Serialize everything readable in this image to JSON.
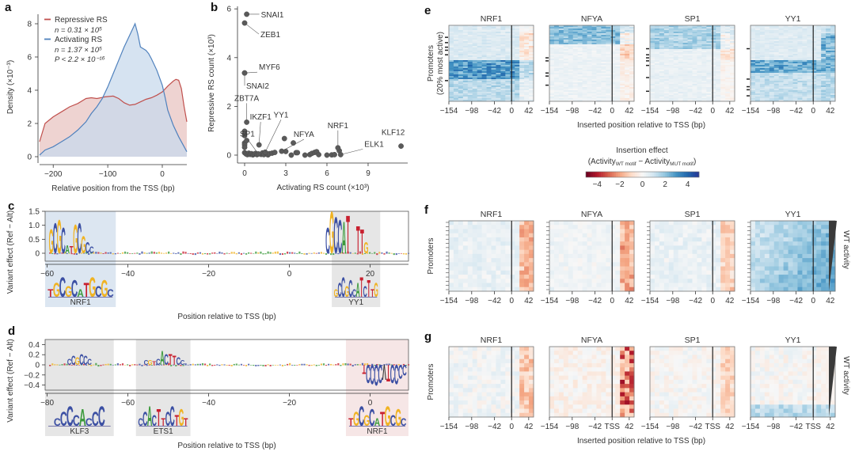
{
  "panel_labels": {
    "a": "a",
    "b": "b",
    "c": "c",
    "d": "d",
    "e": "e",
    "f": "f",
    "g": "g"
  },
  "chart_data": [
    {
      "id": "a",
      "type": "area",
      "xlabel": "Relative position from the TSS (bp)",
      "ylabel": "Density (×10⁻³)",
      "xlim": [
        -225,
        45
      ],
      "ylim": [
        0,
        8
      ],
      "xticks": [
        -200,
        -100,
        0
      ],
      "xtick_labels": [
        "−200",
        "−100",
        "0"
      ],
      "yticks": [
        0,
        2,
        4,
        6,
        8
      ],
      "ytick_labels": [
        "0",
        "2",
        "4",
        "6",
        "8"
      ],
      "legend_position": "top-left",
      "series": [
        {
          "name": "Repressive RS",
          "annotation": [
            "n = 0.31 × 10⁵"
          ],
          "color": "#c0504d",
          "fill": "#e8c4c2",
          "x": [
            -225,
            -215,
            -200,
            -185,
            -170,
            -155,
            -140,
            -130,
            -120,
            -105,
            -90,
            -80,
            -70,
            -60,
            -50,
            -40,
            -30,
            -20,
            -10,
            0,
            10,
            20,
            25,
            30,
            35,
            40,
            45
          ],
          "y": [
            0.9,
            2.0,
            2.4,
            2.7,
            3.0,
            3.2,
            3.5,
            3.55,
            3.5,
            3.6,
            3.65,
            3.5,
            3.25,
            3.1,
            3.15,
            3.3,
            3.45,
            3.55,
            3.7,
            3.9,
            4.25,
            4.55,
            4.65,
            4.6,
            4.1,
            3.0,
            2.1
          ]
        },
        {
          "name": "Activating RS",
          "annotation": [
            "n = 1.37 × 10⁵",
            "P < 2.2 × 10⁻¹⁶"
          ],
          "color": "#4f81bd",
          "fill": "#c8d9ec",
          "x": [
            -225,
            -215,
            -200,
            -185,
            -170,
            -155,
            -140,
            -130,
            -120,
            -110,
            -100,
            -90,
            -80,
            -70,
            -60,
            -50,
            -45,
            -40,
            -35,
            -30,
            -25,
            -20,
            -10,
            0,
            5,
            10,
            20,
            30,
            40,
            45
          ],
          "y": [
            0.1,
            0.4,
            0.6,
            0.9,
            1.2,
            1.6,
            2.1,
            2.6,
            3.0,
            3.5,
            4.2,
            5.0,
            5.8,
            6.6,
            7.3,
            8.0,
            7.4,
            6.6,
            6.5,
            6.4,
            6.2,
            5.9,
            5.2,
            4.3,
            3.6,
            2.8,
            1.9,
            1.2,
            0.6,
            0.3
          ]
        }
      ]
    },
    {
      "id": "b",
      "type": "scatter",
      "xlabel": "Activating RS count (×10³)",
      "ylabel": "Repressive RS count (×10³)",
      "xlim": [
        -0.4,
        11.5
      ],
      "ylim": [
        -0.2,
        6.1
      ],
      "xticks": [
        0,
        3,
        6,
        9
      ],
      "xtick_labels": [
        "0",
        "3",
        "6",
        "9"
      ],
      "yticks": [
        0,
        2,
        4,
        6
      ],
      "ytick_labels": [
        "0",
        "2",
        "4",
        "6"
      ],
      "point_color": "#5a5a5a",
      "labeled_points": [
        {
          "label": "SNAI1",
          "x": 0.15,
          "y": 5.78
        },
        {
          "label": "ZEB1",
          "x": 0.0,
          "y": 5.42
        },
        {
          "label": "MYF6",
          "x": 0.0,
          "y": 3.37
        },
        {
          "label": "SNAI2",
          "x": 0.0,
          "y": 3.37
        },
        {
          "label": "ZBT7A",
          "x": 0.15,
          "y": 1.35
        },
        {
          "label": "IKZF1",
          "x": 1.05,
          "y": 0.42
        },
        {
          "label": "YY1",
          "x": 1.5,
          "y": 0.12
        },
        {
          "label": "SP1",
          "x": 1.0,
          "y": 0.05
        },
        {
          "label": "NFYA",
          "x": 2.7,
          "y": 0.16
        },
        {
          "label": "NRF1",
          "x": 6.8,
          "y": 0.3
        },
        {
          "label": "ELK1",
          "x": 7.0,
          "y": 0.02
        },
        {
          "label": "KLF12",
          "x": 11.4,
          "y": 0.37
        }
      ],
      "other_points": [
        [
          0.0,
          0.98
        ],
        [
          0.0,
          0.88
        ],
        [
          0.0,
          0.8
        ],
        [
          0.0,
          0.5
        ],
        [
          0.0,
          0.42
        ],
        [
          0.0,
          0.32
        ],
        [
          0.15,
          0.6
        ],
        [
          0.0,
          0.1
        ],
        [
          0.1,
          0.05
        ],
        [
          0.2,
          0.02
        ],
        [
          0.3,
          0.08
        ],
        [
          0.4,
          0.03
        ],
        [
          0.5,
          0.06
        ],
        [
          0.6,
          0.01
        ],
        [
          0.7,
          0.04
        ],
        [
          0.8,
          0.07
        ],
        [
          0.9,
          0.02
        ],
        [
          1.2,
          0.03
        ],
        [
          1.3,
          0.09
        ],
        [
          1.4,
          0.02
        ],
        [
          1.6,
          0.05
        ],
        [
          1.7,
          0.01
        ],
        [
          1.8,
          0.06
        ],
        [
          2.0,
          0.08
        ],
        [
          2.2,
          0.11
        ],
        [
          2.9,
          0.68
        ],
        [
          3.0,
          0.15
        ],
        [
          3.4,
          0.0
        ],
        [
          3.55,
          0.5
        ],
        [
          3.75,
          0.1
        ],
        [
          3.85,
          0.1
        ],
        [
          4.4,
          0.0
        ],
        [
          4.75,
          0.02
        ],
        [
          4.9,
          0.07
        ],
        [
          5.1,
          0.11
        ],
        [
          5.25,
          0.14
        ],
        [
          5.4,
          0.02
        ],
        [
          6.0,
          0.0
        ],
        [
          6.35,
          0.01
        ],
        [
          6.55,
          0.02
        ],
        [
          6.9,
          0.18
        ]
      ]
    },
    {
      "id": "c",
      "type": "logo",
      "xlabel": "Position relative to TSS (bp)",
      "ylabel": "Variant effect (Ref − Alt)",
      "xlim": [
        -60.5,
        29.5
      ],
      "ylim": [
        -0.3,
        1.5
      ],
      "xticks": [
        -60,
        -40,
        -20,
        0,
        20
      ],
      "xtick_labels": [
        "−60",
        "−40",
        "−20",
        "0",
        "20"
      ],
      "yticks": [
        0,
        0.5,
        1.0,
        1.5
      ],
      "ytick_labels": [
        "0",
        "0.5",
        "1.0",
        "1.5"
      ],
      "highlight_regions": [
        {
          "label": "NRF1",
          "start": -60.5,
          "end": -43,
          "color": "#dce6f1",
          "motif": "GCGCATGCGCC",
          "ref_motif": "TGCGCATGCGC"
        },
        {
          "label": "YY1",
          "start": 10.5,
          "end": 22.5,
          "color": "#e6e6e6",
          "motif": "CGCCATNTTG",
          "ref_motif": "GCCGCCATCTTG"
        }
      ],
      "logo_letters": [
        {
          "pos": -54,
          "letters": "GCGCATGCGCC",
          "heights": [
            0.75,
            0.95,
            1.05,
            0.8,
            0.25,
            0.22,
            0.9,
            0.95,
            0.55,
            0.35,
            0.2
          ]
        },
        {
          "pos": 12,
          "letters": "CGCCAT",
          "heights": [
            0.8,
            1.3,
            1.15,
            1.05,
            1.0,
            1.2
          ]
        },
        {
          "pos": 18,
          "letters": "TTG",
          "heights": [
            0.85,
            0.75,
            0.35
          ]
        }
      ]
    },
    {
      "id": "d",
      "type": "logo",
      "xlabel": "Position relative to TSS (bp)",
      "ylabel": "Variant effect (Ref − Alt)",
      "xlim": [
        -80.5,
        9.5
      ],
      "ylim": [
        -0.5,
        0.5
      ],
      "xticks": [
        -80,
        -60,
        -40,
        -20,
        0
      ],
      "xtick_labels": [
        "−80",
        "−60",
        "−40",
        "−20",
        "0"
      ],
      "yticks": [
        -0.4,
        -0.2,
        0,
        0.2,
        0.4
      ],
      "ytick_labels": [
        "−0.4",
        "−0.2",
        "0",
        "0.2",
        "0.4"
      ],
      "highlight_regions": [
        {
          "label": "KLF3",
          "start": -80.5,
          "end": -63.5,
          "color": "#e6e6e6",
          "motif": "CCCGCCC",
          "ref_motif": "CCCCACCC"
        },
        {
          "label": "ETS1",
          "start": -58,
          "end": -44.5,
          "color": "#e6e6e6",
          "motif": "CGTCACTTCCT",
          "ref_motif": "CCACTTCCTGT"
        },
        {
          "label": "NRF1",
          "start": -6,
          "end": 9.5,
          "color": "#f6e6e6",
          "motif": "TGCGCATGCGC",
          "ref_motif": "TGCGCATGCGC"
        }
      ]
    },
    {
      "id": "e",
      "type": "heatmap",
      "ylabel": [
        "Promoters",
        "(20% most active)"
      ],
      "xlabel": "Inserted position relative to TSS (bp)",
      "xticks": [
        -154,
        -98,
        -42,
        0,
        42
      ],
      "xtick_labels": [
        "−154",
        "−98",
        "−42",
        "0",
        "42"
      ],
      "panels": [
        {
          "title": "NRF1",
          "pattern": "blue-band-mid",
          "bands": [
            {
              "from": 0.0,
              "to": 0.45,
              "value": 0.8
            },
            {
              "from": 0.45,
              "to": 0.7,
              "value": 3.2
            },
            {
              "from": 0.7,
              "to": 1.0,
              "value": 1.5
            }
          ],
          "right_of_tss": -1.0
        },
        {
          "title": "NFYA",
          "pattern": "blue-top",
          "bands": [
            {
              "from": 0.0,
              "to": 0.25,
              "value": 2.3
            },
            {
              "from": 0.25,
              "to": 1.0,
              "value": 0.3
            }
          ],
          "right_of_tss": -1.2
        },
        {
          "title": "SP1",
          "pattern": "blue-top",
          "bands": [
            {
              "from": 0.0,
              "to": 0.3,
              "value": 1.8
            },
            {
              "from": 0.3,
              "to": 1.0,
              "value": 0.4
            }
          ],
          "right_of_tss": -0.8
        },
        {
          "title": "YY1",
          "pattern": "blue-band-mid",
          "bands": [
            {
              "from": 0.0,
              "to": 0.45,
              "value": 0.7
            },
            {
              "from": 0.45,
              "to": 0.62,
              "value": 2.8
            },
            {
              "from": 0.62,
              "to": 1.0,
              "value": 1.3
            }
          ],
          "right_of_tss": 1.8
        }
      ]
    },
    {
      "id": "colorbar",
      "type": "colorbar",
      "title": "Insertion effect",
      "subtitle_parts": [
        "(Activity",
        "WT motif",
        " − Activity",
        "MUT motif",
        ")"
      ],
      "range": [
        -5,
        5
      ],
      "ticks": [
        -4,
        -2,
        0,
        2,
        4
      ],
      "tick_labels": [
        "−4",
        "−2",
        "0",
        "2",
        "4"
      ],
      "colors": [
        "#67001f",
        "#b2182b",
        "#d6604d",
        "#f4a582",
        "#fddbc7",
        "#f7f7f7",
        "#d1e5f0",
        "#92c5de",
        "#4393c3",
        "#2166ac",
        "#253494"
      ]
    },
    {
      "id": "f",
      "type": "heatmap",
      "ylabel": [
        "Promoters"
      ],
      "side_label": "WT activity",
      "xticks": [
        -154,
        -98,
        -42,
        0,
        42
      ],
      "xtick_labels": [
        "−154",
        "−98",
        "−42",
        "0",
        "42"
      ],
      "panels": [
        {
          "title": "NRF1",
          "left_mean": 0.4,
          "right_mean": -1.6
        },
        {
          "title": "NFYA",
          "left_mean": 0.2,
          "right_mean": -1.7
        },
        {
          "title": "SP1",
          "left_mean": 0.4,
          "right_mean": -1.1
        },
        {
          "title": "YY1",
          "left_mean": 0.9,
          "right_mean": 1.7
        }
      ]
    },
    {
      "id": "g",
      "type": "heatmap",
      "ylabel": [
        "Promoters"
      ],
      "side_label": "WT activity",
      "xlabel": "Inserted position relative to TSS (bp)",
      "xtick_labels_nrf1": [
        "−154",
        "−98",
        "−42",
        "0",
        "42"
      ],
      "xtick_labels_other": [
        "−154",
        "−98",
        "−42",
        "TSS",
        "42"
      ],
      "panels": [
        {
          "title": "NRF1",
          "left_mean": 0.15,
          "right_mean": -1.3
        },
        {
          "title": "NFYA",
          "left_mean": -0.2,
          "right_mean": -2.8
        },
        {
          "title": "SP1",
          "left_mean": 0.0,
          "right_mean": -1.0
        },
        {
          "title": "YY1",
          "left_mean": 0.0,
          "right_mean": -0.2,
          "bottom_blue": 1.5
        }
      ]
    }
  ]
}
